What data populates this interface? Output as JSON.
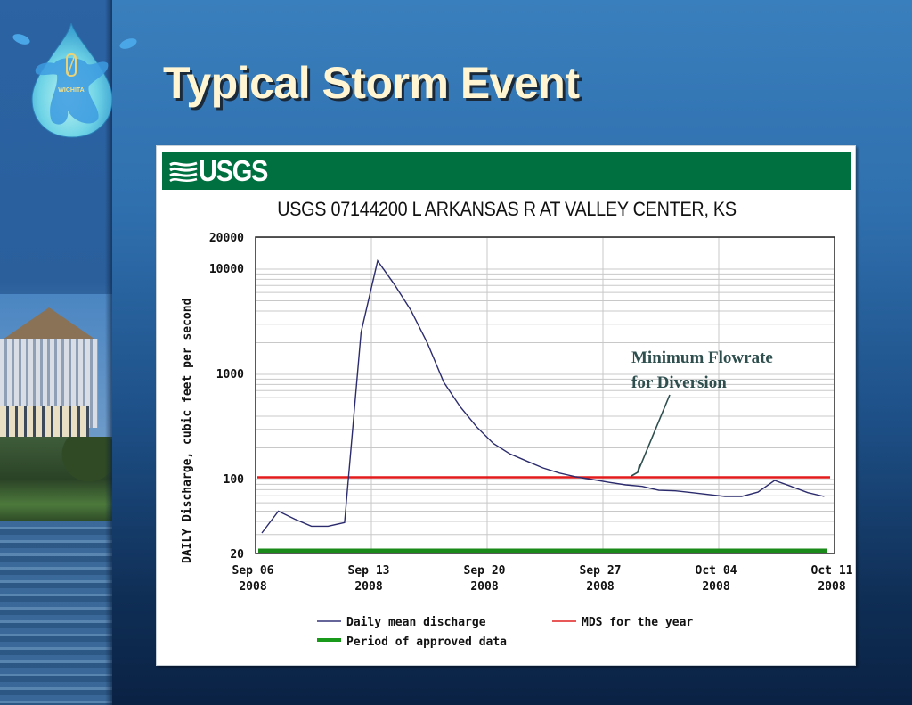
{
  "slide": {
    "title": "Typical Storm Event",
    "logo": {
      "icon": "water-drop-logo-icon",
      "text": "WICHITA"
    }
  },
  "chart_header": {
    "agency_logo": "USGS",
    "banner_color": "#007040"
  },
  "annotation": {
    "line1": "Minimum Flowrate",
    "line2": "for Diversion",
    "color": "#2f4f4f"
  },
  "legend": {
    "items": [
      {
        "label": "Daily mean discharge",
        "color": "#33337a",
        "style": "thin-line"
      },
      {
        "label": "MDS for the year",
        "color": "#e02020",
        "style": "thin-line"
      },
      {
        "label": "Period of approved data",
        "color": "#1a9a1a",
        "style": "thick-bar"
      }
    ]
  },
  "chart_data": {
    "type": "line",
    "title": "USGS 07144200 L ARKANSAS R AT VALLEY CENTER, KS",
    "xlabel": "",
    "ylabel": "DAILY Discharge, cubic feet per second",
    "yscale": "log",
    "ylim": [
      20,
      20000
    ],
    "y_ticks": [
      "20000",
      "10000",
      "1000",
      "100",
      "20"
    ],
    "x_ticks": [
      {
        "line1": "Sep 06",
        "line2": "2008"
      },
      {
        "line1": "Sep 13",
        "line2": "2008"
      },
      {
        "line1": "Sep 20",
        "line2": "2008"
      },
      {
        "line1": "Sep 27",
        "line2": "2008"
      },
      {
        "line1": "Oct 04",
        "line2": "2008"
      },
      {
        "line1": "Oct 11",
        "line2": "2008"
      }
    ],
    "grid": true,
    "legend_position": "bottom",
    "x": [
      "2008-09-06",
      "2008-09-07",
      "2008-09-08",
      "2008-09-09",
      "2008-09-10",
      "2008-09-11",
      "2008-09-12",
      "2008-09-13",
      "2008-09-14",
      "2008-09-15",
      "2008-09-16",
      "2008-09-17",
      "2008-09-18",
      "2008-09-19",
      "2008-09-20",
      "2008-09-21",
      "2008-09-22",
      "2008-09-23",
      "2008-09-24",
      "2008-09-25",
      "2008-09-26",
      "2008-09-27",
      "2008-09-28",
      "2008-09-29",
      "2008-09-30",
      "2008-10-01",
      "2008-10-02",
      "2008-10-03",
      "2008-10-04",
      "2008-10-05",
      "2008-10-06",
      "2008-10-07",
      "2008-10-08",
      "2008-10-09",
      "2008-10-10"
    ],
    "series": [
      {
        "name": "Daily mean discharge",
        "values": [
          31,
          50,
          42,
          36,
          36,
          39,
          2500,
          12000,
          7200,
          4100,
          2000,
          840,
          490,
          315,
          220,
          175,
          150,
          129,
          115,
          106,
          100,
          94,
          89,
          86,
          79,
          78,
          75,
          72,
          69,
          69,
          76,
          98,
          86,
          75,
          69
        ]
      },
      {
        "name": "MDS for the year",
        "values": [
          105,
          105,
          105,
          105,
          105,
          105,
          105,
          105,
          105,
          105,
          105,
          105,
          105,
          105,
          105,
          105,
          105,
          105,
          105,
          105,
          105,
          105,
          105,
          105,
          105,
          105,
          105,
          105,
          105,
          105,
          105,
          105,
          105,
          105,
          105
        ]
      }
    ],
    "approved_data_period": [
      "2008-09-06",
      "2008-10-10"
    ]
  }
}
